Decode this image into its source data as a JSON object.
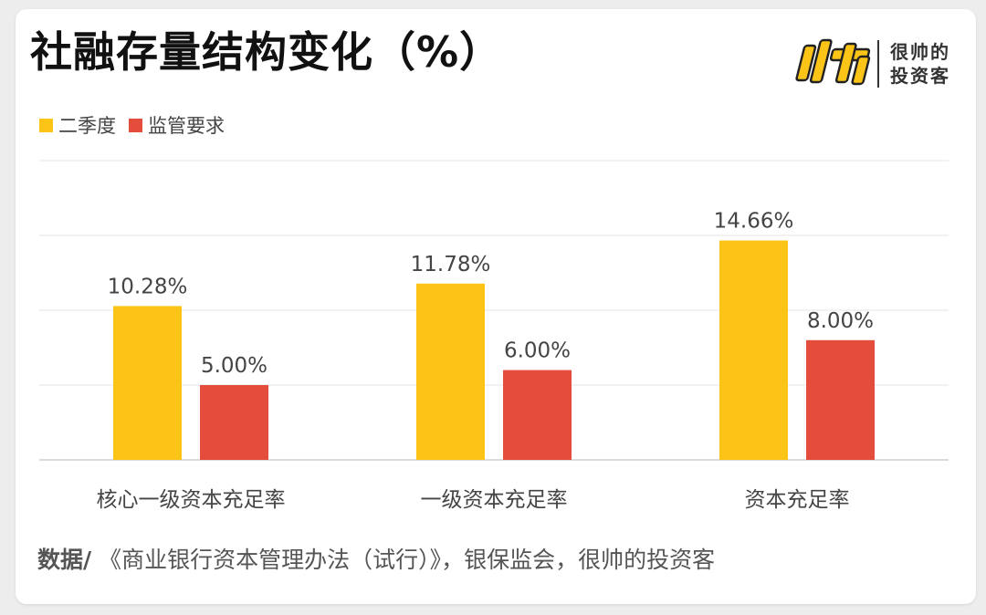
{
  "title": "社融存量结构变化（%）",
  "brand": {
    "logo_name": "logo-mark",
    "line1": "很帅的",
    "line2": "投资客"
  },
  "legend": [
    {
      "name": "二季度",
      "color": "#fbc417"
    },
    {
      "name": "监管要求",
      "color": "#e44c3c"
    }
  ],
  "source": {
    "label": "数据/",
    "text": " 《商业银行资本管理办法（试行）》，银保监会，很帅的投资客"
  },
  "chart_data": {
    "type": "bar",
    "categories": [
      "核心一级资本充足率",
      "一级资本充足率",
      "资本充足率"
    ],
    "series": [
      {
        "name": "二季度",
        "values": [
          10.28,
          11.78,
          14.66
        ],
        "labels": [
          "10.28%",
          "11.78%",
          "14.66%"
        ],
        "color": "#fbc417"
      },
      {
        "name": "监管要求",
        "values": [
          5.0,
          6.0,
          8.0
        ],
        "labels": [
          "5.00%",
          "6.00%",
          "8.00%"
        ],
        "color": "#e44c3c"
      }
    ],
    "ylim": [
      0,
      20
    ],
    "grid": true,
    "legend_position": "top-left"
  }
}
